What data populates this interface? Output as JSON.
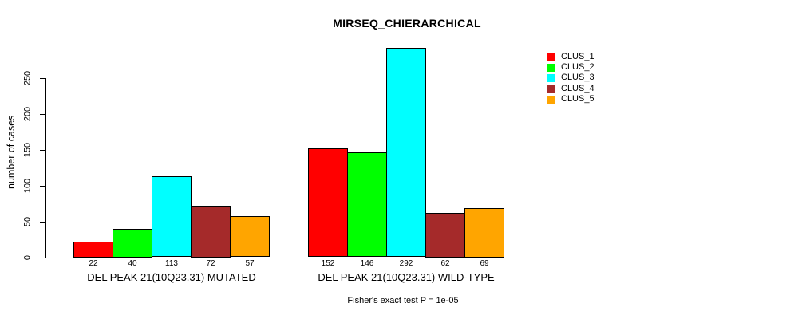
{
  "chart_data": {
    "type": "bar",
    "title": "MIRSEQ_CHIERARCHICAL",
    "ylabel": "number of cases",
    "xlabel": "",
    "ylim": [
      0,
      292
    ],
    "yticks": [
      0,
      50,
      100,
      150,
      200,
      250
    ],
    "grid": false,
    "legend_position": "right-top",
    "series_names": [
      "CLUS_1",
      "CLUS_2",
      "CLUS_3",
      "CLUS_4",
      "CLUS_5"
    ],
    "colors": [
      "#FF0000",
      "#00FF00",
      "#00FFFF",
      "#A52A2A",
      "#FFA500"
    ],
    "groups": [
      {
        "label": "DEL PEAK 21(10Q23.31) MUTATED",
        "values": [
          22,
          40,
          113,
          72,
          57
        ]
      },
      {
        "label": "DEL PEAK 21(10Q23.31) WILD-TYPE",
        "values": [
          152,
          146,
          292,
          62,
          69
        ]
      }
    ],
    "annotation": "Fisher's exact test P = 1e-05",
    "bar_border_color": "#000000",
    "background_color": "#FFFFFF"
  }
}
